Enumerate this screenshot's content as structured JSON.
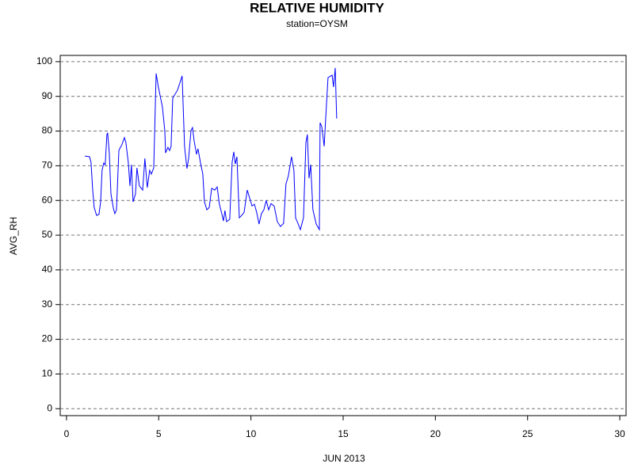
{
  "chart_data": {
    "type": "line",
    "title": "RELATIVE HUMIDITY",
    "subtitle": "station=OYSM",
    "x_label": "JUN 2013",
    "y_label": "AVG_RH",
    "xlim": [
      -0.34,
      30.34
    ],
    "ylim": [
      -2,
      101.8
    ],
    "xticks": [
      0,
      5,
      10,
      15,
      20,
      25,
      30
    ],
    "yticks": [
      0,
      10,
      20,
      30,
      40,
      50,
      60,
      70,
      80,
      90,
      100
    ],
    "grid": true,
    "series": [
      {
        "name": "AVG_RH",
        "color": "#0000ff",
        "x": [
          1.0,
          1.25,
          1.33,
          1.42,
          1.5,
          1.63,
          1.76,
          1.85,
          1.93,
          2.02,
          2.1,
          2.19,
          2.23,
          2.32,
          2.41,
          2.54,
          2.62,
          2.71,
          2.84,
          2.92,
          3.0,
          3.14,
          3.22,
          3.35,
          3.44,
          3.52,
          3.61,
          3.74,
          3.82,
          3.95,
          4.13,
          4.25,
          4.38,
          4.51,
          4.6,
          4.73,
          4.86,
          4.98,
          5.2,
          5.33,
          5.37,
          5.5,
          5.59,
          5.67,
          5.76,
          6.02,
          6.27,
          6.4,
          6.53,
          6.62,
          6.75,
          6.83,
          6.92,
          7.05,
          7.13,
          7.26,
          7.39,
          7.48,
          7.61,
          7.74,
          7.87,
          8.04,
          8.17,
          8.29,
          8.42,
          8.51,
          8.59,
          8.68,
          8.85,
          8.98,
          9.07,
          9.15,
          9.24,
          9.37,
          9.5,
          9.63,
          9.8,
          9.93,
          10.06,
          10.19,
          10.31,
          10.44,
          10.57,
          10.7,
          10.83,
          10.96,
          11.09,
          11.26,
          11.43,
          11.6,
          11.77,
          11.9,
          12.03,
          12.2,
          12.33,
          12.42,
          12.55,
          12.68,
          12.85,
          12.98,
          13.06,
          13.15,
          13.24,
          13.36,
          13.54,
          13.71,
          13.75,
          13.84,
          13.97,
          14.1,
          14.18,
          14.4,
          14.48,
          14.57,
          14.65
        ],
        "values": [
          72.8,
          72.6,
          71,
          63,
          58,
          55.7,
          56,
          59.6,
          68.7,
          70.8,
          70.3,
          79,
          79.5,
          73.7,
          61.9,
          57.8,
          56.2,
          57.3,
          74.4,
          75.3,
          76,
          78.1,
          76.7,
          71,
          64.2,
          70.3,
          59.6,
          61.9,
          69.4,
          64.2,
          63,
          72.1,
          63.7,
          68.7,
          67.6,
          69.4,
          96.6,
          92.7,
          87,
          80.1,
          73.7,
          75.3,
          74.4,
          75.6,
          89.5,
          91.8,
          95.9,
          75.6,
          69.2,
          72.1,
          80.1,
          81,
          77.2,
          73.3,
          74.9,
          71,
          67.6,
          59.6,
          57.3,
          58,
          63.5,
          63,
          63.9,
          58.9,
          56.2,
          54.1,
          57.1,
          53.9,
          54.6,
          71,
          74,
          70.5,
          72.6,
          55,
          55.7,
          56.6,
          63,
          60.7,
          58.4,
          58.9,
          56.6,
          53.2,
          56.2,
          57.3,
          60,
          57.3,
          59.1,
          58.4,
          53.9,
          52.5,
          53.4,
          64.8,
          67.1,
          72.6,
          68.7,
          55,
          53.4,
          51.6,
          55,
          76.7,
          79,
          66.4,
          70.3,
          57.3,
          53.2,
          51.6,
          82.4,
          81.3,
          75.6,
          88.1,
          95.4,
          96.1,
          92.7,
          98.2,
          83.6
        ]
      }
    ]
  }
}
